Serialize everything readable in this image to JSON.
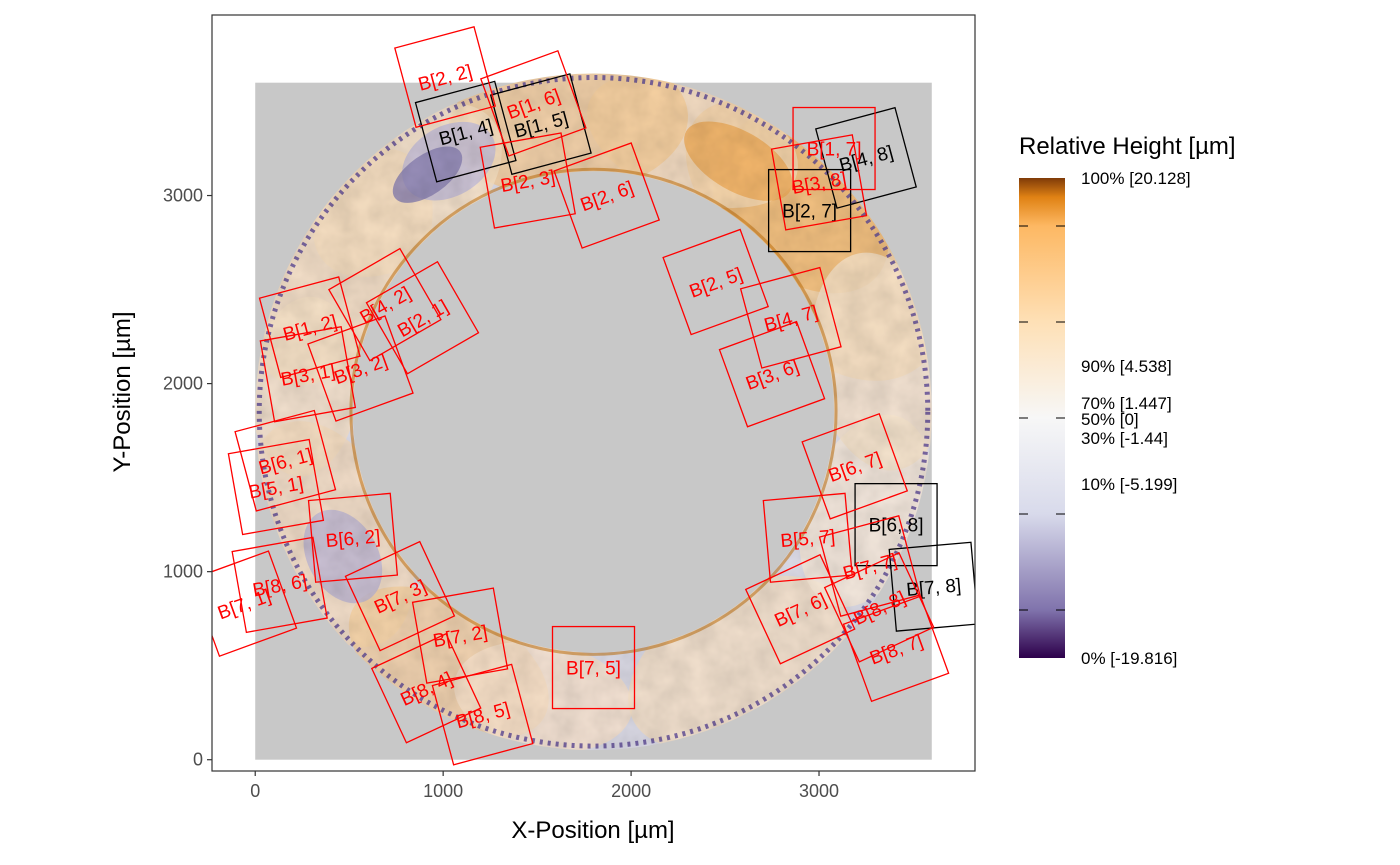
{
  "chart_data": {
    "type": "heatmap",
    "xlabel": "X-Position [µm]",
    "ylabel": "Y-Position [µm]",
    "xlim": [
      -230,
      3830
    ],
    "ylim": [
      -60,
      3960
    ],
    "x_ticks": [
      0,
      1000,
      2000,
      3000
    ],
    "y_ticks": [
      0,
      1000,
      2000,
      3000
    ],
    "grid": false,
    "background_region": {
      "x": [
        0,
        3600
      ],
      "y": [
        0,
        3600
      ],
      "color": "#c8c8c8"
    },
    "ring": {
      "center": [
        1800,
        1850
      ],
      "outer_radius": 1800,
      "inner_radius": 1280
    },
    "legend": {
      "title": "Relative Height [µm]",
      "position": "right",
      "color_stops": [
        {
          "p": 0.0,
          "color": "#2d004b"
        },
        {
          "p": 0.1,
          "color": "#8073ac"
        },
        {
          "p": 0.3,
          "color": "#d8daeb"
        },
        {
          "p": 0.5,
          "color": "#f7f7f7"
        },
        {
          "p": 0.7,
          "color": "#fee0b6"
        },
        {
          "p": 0.9,
          "color": "#fdb863"
        },
        {
          "p": 0.96,
          "color": "#e08214"
        },
        {
          "p": 1.0,
          "color": "#7f3b08"
        }
      ],
      "entries": [
        {
          "label": "100% [20.128]",
          "value": 20.128
        },
        {
          "label": "90% [4.538]",
          "value": 4.538
        },
        {
          "label": "70% [1.447]",
          "value": 1.447
        },
        {
          "label": "50% [0]",
          "value": 0
        },
        {
          "label": "30% [-1.44]",
          "value": -1.44
        },
        {
          "label": "10% [-5.199]",
          "value": -5.199
        },
        {
          "label": "0% [-19.816]",
          "value": -19.816
        }
      ]
    },
    "series": [
      {
        "color": "#000000",
        "blocks": [
          {
            "label": "B[1, 4]",
            "x": 1120,
            "y": 3340,
            "angle": 15
          },
          {
            "label": "B[1, 5]",
            "x": 1520,
            "y": 3380,
            "angle": 15
          },
          {
            "label": "B[2, 7]",
            "x": 2950,
            "y": 2920,
            "angle": 0
          },
          {
            "label": "B[4, 8]",
            "x": 3250,
            "y": 3200,
            "angle": 15
          },
          {
            "label": "B[6, 8]",
            "x": 3410,
            "y": 1250,
            "angle": 0
          },
          {
            "label": "B[7, 8]",
            "x": 3610,
            "y": 920,
            "angle": 5
          }
        ]
      },
      {
        "color": "#ff0000",
        "blocks": [
          {
            "label": "B[2, 2]",
            "x": 1010,
            "y": 3630,
            "angle": 15
          },
          {
            "label": "B[1, 6]",
            "x": 1480,
            "y": 3490,
            "angle": 20
          },
          {
            "label": "B[2, 3]",
            "x": 1450,
            "y": 3080,
            "angle": 10
          },
          {
            "label": "B[2, 6]",
            "x": 1870,
            "y": 3000,
            "angle": 20
          },
          {
            "label": "B[1, 7]",
            "x": 3080,
            "y": 3250,
            "angle": 0
          },
          {
            "label": "B[3, 8]",
            "x": 3000,
            "y": 3070,
            "angle": 10
          },
          {
            "label": "B[2, 5]",
            "x": 2450,
            "y": 2540,
            "angle": 20
          },
          {
            "label": "B[4, 7]",
            "x": 2850,
            "y": 2350,
            "angle": 15
          },
          {
            "label": "B[3, 6]",
            "x": 2750,
            "y": 2050,
            "angle": 20
          },
          {
            "label": "B[4, 2]",
            "x": 690,
            "y": 2420,
            "angle": 30
          },
          {
            "label": "B[2, 1]",
            "x": 890,
            "y": 2350,
            "angle": 30
          },
          {
            "label": "B[1, 2]",
            "x": 290,
            "y": 2300,
            "angle": 15
          },
          {
            "label": "B[3, 2]",
            "x": 560,
            "y": 2080,
            "angle": 20
          },
          {
            "label": "B[3, 1]",
            "x": 280,
            "y": 2050,
            "angle": 10
          },
          {
            "label": "B[6, 1]",
            "x": 160,
            "y": 1590,
            "angle": 15
          },
          {
            "label": "B[5, 1]",
            "x": 110,
            "y": 1450,
            "angle": 10
          },
          {
            "label": "B[6, 2]",
            "x": 520,
            "y": 1180,
            "angle": 5
          },
          {
            "label": "B[6, 7]",
            "x": 3190,
            "y": 1560,
            "angle": 20
          },
          {
            "label": "B[5, 7]",
            "x": 2940,
            "y": 1180,
            "angle": 5
          },
          {
            "label": "B[7, 7]",
            "x": 3270,
            "y": 1030,
            "angle": 15
          },
          {
            "label": "B[8, 8]",
            "x": 3320,
            "y": 810,
            "angle": 25
          },
          {
            "label": "B[8, 6]",
            "x": 130,
            "y": 930,
            "angle": 10
          },
          {
            "label": "B[7, 1]",
            "x": -60,
            "y": 830,
            "angle": 20
          },
          {
            "label": "B[7, 3]",
            "x": 770,
            "y": 870,
            "angle": 25
          },
          {
            "label": "B[7, 2]",
            "x": 1090,
            "y": 660,
            "angle": 10
          },
          {
            "label": "B[7, 5]",
            "x": 1800,
            "y": 490,
            "angle": 0
          },
          {
            "label": "B[7, 6]",
            "x": 2900,
            "y": 800,
            "angle": 25
          },
          {
            "label": "B[8, 7]",
            "x": 3410,
            "y": 590,
            "angle": 20
          },
          {
            "label": "B[8, 4]",
            "x": 910,
            "y": 380,
            "angle": 25
          },
          {
            "label": "B[8, 5]",
            "x": 1210,
            "y": 240,
            "angle": 15
          }
        ]
      }
    ]
  }
}
